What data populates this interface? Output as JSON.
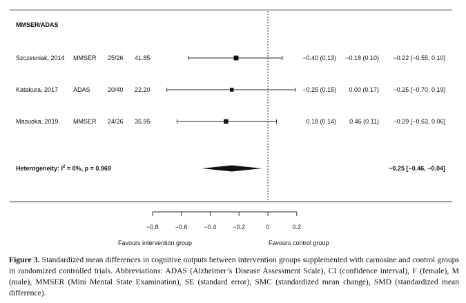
{
  "chart_data": {
    "type": "forest",
    "section_title": "MMSER/ADAS",
    "studies": [
      {
        "study": "Szczesniak, 2014",
        "measure": "MMSER",
        "n": "25/26",
        "weight": "41.85",
        "intervention": "−0.40 (0.13)",
        "control": "−0.18 (0.10)",
        "smd_ci": "−0.22 [−0.55, 0.10]",
        "smd": -0.22,
        "ci": [
          -0.55,
          0.1
        ]
      },
      {
        "study": "Katakura, 2017",
        "measure": "ADAS",
        "n": "20/40",
        "weight": "22.20",
        "intervention": "−0.25 (0.15)",
        "control": "0.00 (0.17)",
        "smd_ci": "−0.25 [−0.70, 0.19]",
        "smd": -0.25,
        "ci": [
          -0.7,
          0.19
        ]
      },
      {
        "study": "Masuoka, 2019",
        "measure": "MMSER",
        "n": "24/26",
        "weight": "35.95",
        "intervention": "0.18 (0.14)",
        "control": "0.46 (0.11)",
        "smd_ci": "−0.29 [−0.63, 0.06]",
        "smd": -0.29,
        "ci": [
          -0.63,
          0.06
        ]
      }
    ],
    "pooled": {
      "label": "Heterogeneity: I",
      "label_sup": "2",
      "label_rest": " = 0%,  p = 0.969",
      "smd": -0.25,
      "ci": [
        -0.46,
        -0.04
      ],
      "smd_ci": "−0.25 [−0.46, −0.04]"
    },
    "x_axis": {
      "ticks": [
        -0.8,
        -0.6,
        -0.4,
        -0.2,
        0,
        0.2
      ],
      "tick_labels": [
        "−0.8",
        "−0.6",
        "−0.4",
        "−0.2",
        "0",
        "0.2"
      ],
      "left_label": "Favours intervention group",
      "right_label": "Favours control group"
    },
    "reference_line": 0
  },
  "caption": {
    "label": "Figure 3.",
    "text": " Standardized mean differences in cognitive outputs between intervention groups supplemented with carnosine and control groups in randomized controlled trials. Abbreviations: ADAS (Alzheimer’s Disease Assessment Scale), CI (confidence interval), F (female), M (male), MMSER (Mini Mental State Examination), SE (standard error), SMC (standardized mean change), SMD (standardized mean difference)."
  }
}
